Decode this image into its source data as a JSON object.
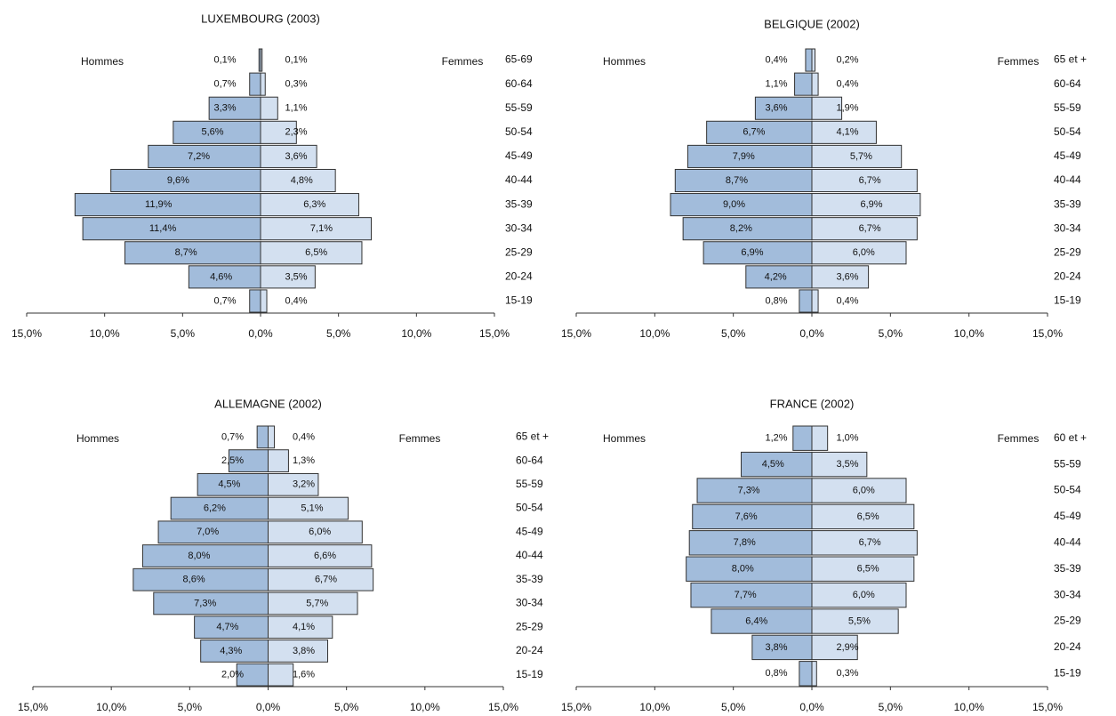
{
  "chart_data": [
    {
      "type": "pyramid",
      "title": "LUXEMBOURG (2003)",
      "categories": [
        "65-69",
        "60-64",
        "55-59",
        "50-54",
        "45-49",
        "40-44",
        "35-39",
        "30-34",
        "25-29",
        "20-24",
        "15-19"
      ],
      "series": [
        {
          "name": "Hommes",
          "color": "#a2bcdb",
          "values": [
            0.1,
            0.7,
            3.3,
            5.6,
            7.2,
            9.6,
            11.9,
            11.4,
            8.7,
            4.6,
            0.7
          ],
          "value_labels": [
            "0,1%",
            "0,7%",
            "3,3%",
            "5,6%",
            "7,2%",
            "9,6%",
            "11,9%",
            "11,4%",
            "8,7%",
            "4,6%",
            "0,7%"
          ]
        },
        {
          "name": "Femmes",
          "color": "#d3e0f0",
          "values": [
            0.1,
            0.3,
            1.1,
            2.3,
            3.6,
            4.8,
            6.3,
            7.1,
            6.5,
            3.5,
            0.4
          ],
          "value_labels": [
            "0,1%",
            "0,3%",
            "1,1%",
            "2,3%",
            "3,6%",
            "4,8%",
            "6,3%",
            "7,1%",
            "6,5%",
            "3,5%",
            "0,4%"
          ]
        }
      ],
      "xlim": [
        -15,
        15
      ],
      "xticks": [
        {
          "value": -15,
          "label": "15,0%"
        },
        {
          "value": -10,
          "label": "10,0%"
        },
        {
          "value": -5,
          "label": "5,0%"
        },
        {
          "value": 0,
          "label": "0,0%"
        },
        {
          "value": 5,
          "label": "5,0%"
        },
        {
          "value": 10,
          "label": "10,0%"
        },
        {
          "value": 15,
          "label": "15,0%"
        }
      ]
    },
    {
      "type": "pyramid",
      "title": "BELGIQUE (2002)",
      "categories": [
        "65 et +",
        "60-64",
        "55-59",
        "50-54",
        "45-49",
        "40-44",
        "35-39",
        "30-34",
        "25-29",
        "20-24",
        "15-19"
      ],
      "series": [
        {
          "name": "Hommes",
          "color": "#a2bcdb",
          "values": [
            0.4,
            1.1,
            3.6,
            6.7,
            7.9,
            8.7,
            9.0,
            8.2,
            6.9,
            4.2,
            0.8
          ],
          "value_labels": [
            "0,4%",
            "1,1%",
            "3,6%",
            "6,7%",
            "7,9%",
            "8,7%",
            "9,0%",
            "8,2%",
            "6,9%",
            "4,2%",
            "0,8%"
          ]
        },
        {
          "name": "Femmes",
          "color": "#d3e0f0",
          "values": [
            0.2,
            0.4,
            1.9,
            4.1,
            5.7,
            6.7,
            6.9,
            6.7,
            6.0,
            3.6,
            0.4
          ],
          "value_labels": [
            "0,2%",
            "0,4%",
            "1,9%",
            "4,1%",
            "5,7%",
            "6,7%",
            "6,9%",
            "6,7%",
            "6,0%",
            "3,6%",
            "0,4%"
          ]
        }
      ],
      "xlim": [
        -15,
        15
      ],
      "xticks": [
        {
          "value": -15,
          "label": "15,0%"
        },
        {
          "value": -10,
          "label": "10,0%"
        },
        {
          "value": -5,
          "label": "5,0%"
        },
        {
          "value": 0,
          "label": "0,0%"
        },
        {
          "value": 5,
          "label": "5,0%"
        },
        {
          "value": 10,
          "label": "10,0%"
        },
        {
          "value": 15,
          "label": "15,0%"
        }
      ]
    },
    {
      "type": "pyramid",
      "title": "ALLEMAGNE (2002)",
      "categories": [
        "65 et +",
        "60-64",
        "55-59",
        "50-54",
        "45-49",
        "40-44",
        "35-39",
        "30-34",
        "25-29",
        "20-24",
        "15-19"
      ],
      "series": [
        {
          "name": "Hommes",
          "color": "#a2bcdb",
          "values": [
            0.7,
            2.5,
            4.5,
            6.2,
            7.0,
            8.0,
            8.6,
            7.3,
            4.7,
            4.3,
            2.0
          ],
          "value_labels": [
            "0,7%",
            "2,5%",
            "4,5%",
            "6,2%",
            "7,0%",
            "8,0%",
            "8,6%",
            "7,3%",
            "4,7%",
            "4,3%",
            "2,0%"
          ]
        },
        {
          "name": "Femmes",
          "color": "#d3e0f0",
          "values": [
            0.4,
            1.3,
            3.2,
            5.1,
            6.0,
            6.6,
            6.7,
            5.7,
            4.1,
            3.8,
            1.6
          ],
          "value_labels": [
            "0,4%",
            "1,3%",
            "3,2%",
            "5,1%",
            "6,0%",
            "6,6%",
            "6,7%",
            "5,7%",
            "4,1%",
            "3,8%",
            "1,6%"
          ]
        }
      ],
      "xlim": [
        -15,
        15
      ],
      "xticks": [
        {
          "value": -15,
          "label": "15,0%"
        },
        {
          "value": -10,
          "label": "10,0%"
        },
        {
          "value": -5,
          "label": "5,0%"
        },
        {
          "value": 0,
          "label": "0,0%"
        },
        {
          "value": 5,
          "label": "5,0%"
        },
        {
          "value": 10,
          "label": "10,0%"
        },
        {
          "value": 15,
          "label": "15,0%"
        }
      ]
    },
    {
      "type": "pyramid",
      "title": "FRANCE (2002)",
      "categories": [
        "60 et +",
        "55-59",
        "50-54",
        "45-49",
        "40-44",
        "35-39",
        "30-34",
        "25-29",
        "20-24",
        "15-19"
      ],
      "series": [
        {
          "name": "Hommes",
          "color": "#a2bcdb",
          "values": [
            1.2,
            4.5,
            7.3,
            7.6,
            7.8,
            8.0,
            7.7,
            6.4,
            3.8,
            0.8
          ],
          "value_labels": [
            "1,2%",
            "4,5%",
            "7,3%",
            "7,6%",
            "7,8%",
            "8,0%",
            "7,7%",
            "6,4%",
            "3,8%",
            "0,8%"
          ]
        },
        {
          "name": "Femmes",
          "color": "#d3e0f0",
          "values": [
            1.0,
            3.5,
            6.0,
            6.5,
            6.7,
            6.5,
            6.0,
            5.5,
            2.9,
            0.3
          ],
          "value_labels": [
            "1,0%",
            "3,5%",
            "6,0%",
            "6,5%",
            "6,7%",
            "6,5%",
            "6,0%",
            "5,5%",
            "2,9%",
            "0,3%"
          ]
        }
      ],
      "xlim": [
        -15,
        15
      ],
      "xticks": [
        {
          "value": -15,
          "label": "15,0%"
        },
        {
          "value": -10,
          "label": "10,0%"
        },
        {
          "value": -5,
          "label": "5,0%"
        },
        {
          "value": 0,
          "label": "0,0%"
        },
        {
          "value": 5,
          "label": "5,0%"
        },
        {
          "value": 10,
          "label": "10,0%"
        },
        {
          "value": 15,
          "label": "15,0%"
        }
      ]
    }
  ]
}
